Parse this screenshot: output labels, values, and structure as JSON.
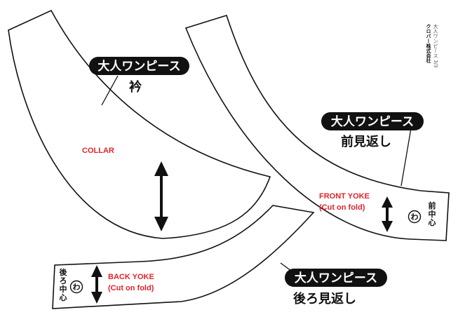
{
  "brand": {
    "company": "クロバー株式会社",
    "code": "大人ワンピース 3/3"
  },
  "collar": {
    "pill": "大人ワンピース",
    "name": "衿",
    "label": "COLLAR"
  },
  "front_facing": {
    "pill": "大人ワンピース",
    "name": "前見返し",
    "label_line1": "FRONT YOKE",
    "label_line2": "(Cut on fold)",
    "center_mark": [
      "前",
      "中",
      "心"
    ],
    "fold_mark": "わ"
  },
  "back_facing": {
    "pill": "大人ワンピース",
    "name": "後ろ見返し",
    "label_line1": "BACK YOKE",
    "label_line2": "(Cut on fold)",
    "center_mark": [
      "後",
      "ろ",
      "中",
      "心"
    ],
    "fold_mark": "わ"
  },
  "colors": {
    "outline": "#111111",
    "pill_bg": "#111111",
    "accent_red": "#e0242c"
  }
}
